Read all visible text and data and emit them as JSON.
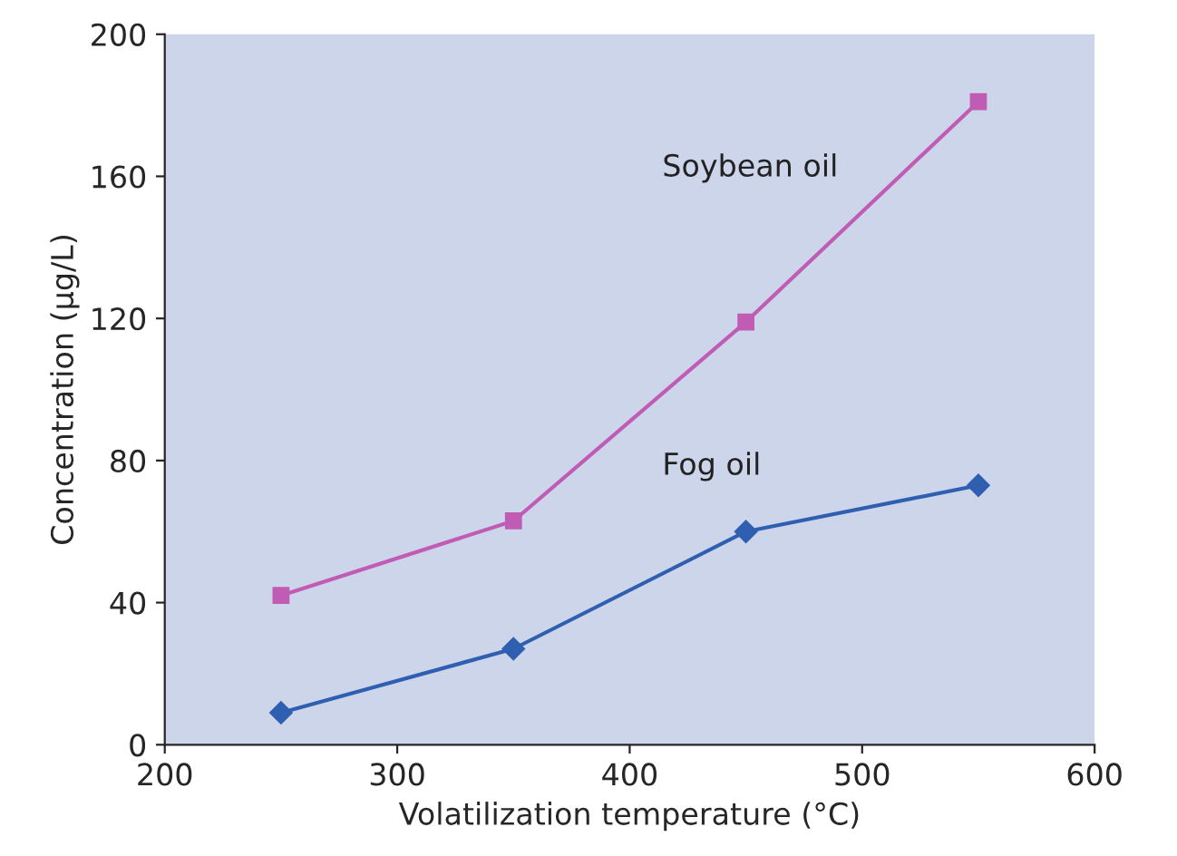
{
  "chart_data": {
    "type": "line",
    "xlabel": "Volatilization temperature (°C)",
    "ylabel": "Concentration (µg/L)",
    "x": [
      250,
      350,
      450,
      550
    ],
    "series": [
      {
        "name": "Soybean oil",
        "color": "#c05cb4",
        "values": [
          42,
          63,
          119,
          181
        ],
        "marker": "square"
      },
      {
        "name": "Fog oil",
        "color": "#2f5fb0",
        "values": [
          9,
          27,
          60,
          73
        ],
        "marker": "diamond"
      }
    ],
    "xlim": [
      200,
      600
    ],
    "xticks": [
      200,
      300,
      400,
      500,
      600
    ],
    "ylim": [
      0,
      200
    ],
    "yticks": [
      0,
      40,
      80,
      120,
      160,
      200
    ],
    "legend": false,
    "grid": false
  }
}
